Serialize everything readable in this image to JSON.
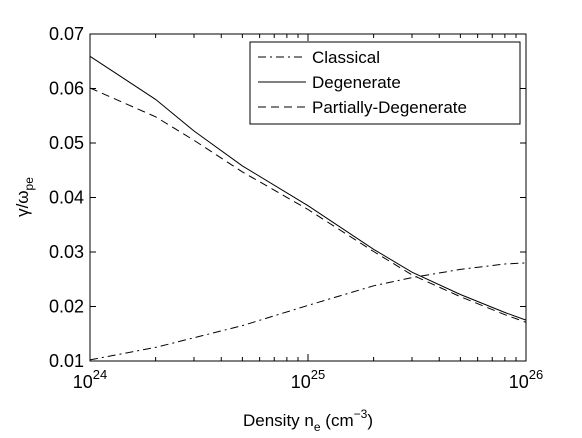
{
  "chart_data": {
    "type": "line",
    "xlabel": "Density n",
    "xlabel_sub": "e",
    "xlabel_unit": "(cm",
    "xlabel_unit_sup": "−3",
    "xlabel_unit_close": ")",
    "ylabel": "γ/ω",
    "ylabel_sub": "pe",
    "x_scale": "log",
    "xlim": [
      1e+24,
      1e+26
    ],
    "ylim": [
      0.01,
      0.07
    ],
    "x_ticks": [
      {
        "value": 1e+24,
        "base": "10",
        "exp": "24"
      },
      {
        "value": 1e+25,
        "base": "10",
        "exp": "25"
      },
      {
        "value": 1e+26,
        "base": "10",
        "exp": "26"
      }
    ],
    "y_ticks": [
      {
        "value": 0.01,
        "label": "0.01"
      },
      {
        "value": 0.02,
        "label": "0.02"
      },
      {
        "value": 0.03,
        "label": "0.03"
      },
      {
        "value": 0.04,
        "label": "0.04"
      },
      {
        "value": 0.05,
        "label": "0.05"
      },
      {
        "value": 0.06,
        "label": "0.06"
      },
      {
        "value": 0.07,
        "label": "0.07"
      }
    ],
    "grid": false,
    "legend_position": "top-right",
    "series": [
      {
        "name": "Classical",
        "style": "dashdot",
        "x": [
          1e+24,
          2e+24,
          5e+24,
          1e+25,
          2e+25,
          3e+25,
          5e+25,
          8e+25,
          1e+26
        ],
        "y": [
          0.0102,
          0.0125,
          0.0165,
          0.0202,
          0.0238,
          0.0253,
          0.0268,
          0.0278,
          0.028
        ]
      },
      {
        "name": "Degenerate",
        "style": "solid",
        "x": [
          1e+24,
          2e+24,
          3e+24,
          5e+24,
          1e+25,
          2e+25,
          3e+25,
          5e+25,
          8e+25,
          1e+26
        ],
        "y": [
          0.0659,
          0.058,
          0.0522,
          0.0458,
          0.0385,
          0.0305,
          0.0263,
          0.0222,
          0.0189,
          0.0175
        ]
      },
      {
        "name": "Partially-Degenerate",
        "style": "dashed",
        "x": [
          1e+24,
          2e+24,
          3e+24,
          5e+24,
          1e+25,
          2e+25,
          3e+25,
          5e+25,
          8e+25,
          1e+26
        ],
        "y": [
          0.0601,
          0.0548,
          0.0505,
          0.0447,
          0.0378,
          0.0301,
          0.0258,
          0.0218,
          0.0185,
          0.0171
        ]
      }
    ]
  }
}
